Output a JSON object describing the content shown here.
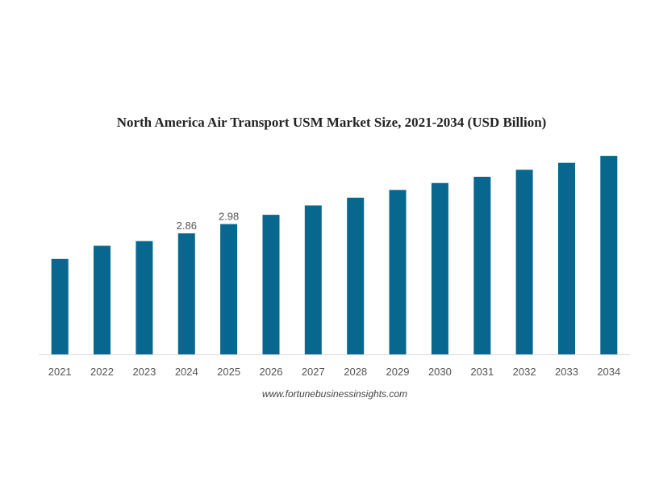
{
  "chart_data": {
    "type": "bar",
    "title": "North America Air Transport USM Market Size, 2021-2034 (USD Billion)",
    "xlabel": "",
    "ylabel": "",
    "categories": [
      "2021",
      "2022",
      "2023",
      "2024",
      "2025",
      "2026",
      "2027",
      "2028",
      "2029",
      "2030",
      "2031",
      "2032",
      "2033",
      "2034"
    ],
    "values": [
      2.53,
      2.7,
      2.76,
      2.86,
      2.98,
      3.1,
      3.22,
      3.32,
      3.42,
      3.51,
      3.59,
      3.68,
      3.77,
      3.86
    ],
    "data_labels": [
      {
        "index": 3,
        "text": "2.86"
      },
      {
        "index": 4,
        "text": "2.98"
      }
    ],
    "ylim": [
      1.3,
      4.1
    ],
    "grid": false,
    "legend": "none",
    "bar_color": "#08678f",
    "axis_color": "#d9d9d9"
  },
  "source": "www.fortunebusinessinsights.com"
}
